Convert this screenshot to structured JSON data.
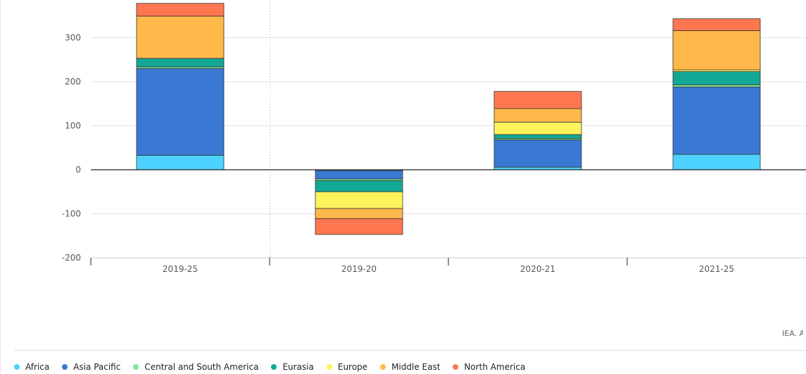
{
  "chart_data": {
    "type": "bar",
    "stacked": true,
    "categories": [
      "2019-25",
      "2019-20",
      "2020-21",
      "2021-25"
    ],
    "y_ticks": [
      300,
      200,
      100,
      0,
      -100,
      -200
    ],
    "y_tick_labels": [
      "300",
      "200",
      "100",
      "0",
      "-100",
      "-200"
    ],
    "ylim": [
      -200,
      380
    ],
    "grid": true,
    "legend_position": "bottom",
    "series": [
      {
        "name": "Africa",
        "color": "#4dd2ff",
        "values": [
          33,
          -2,
          6,
          35
        ]
      },
      {
        "name": "Asia Pacific",
        "color": "#3a78d4",
        "values": [
          197,
          -19,
          62,
          153
        ]
      },
      {
        "name": "Central and South America",
        "color": "#7ee89a",
        "values": [
          4,
          -4,
          3,
          5
        ]
      },
      {
        "name": "Eurasia",
        "color": "#13a896",
        "values": [
          19,
          -25,
          9,
          30
        ]
      },
      {
        "name": "Europe",
        "color": "#fff35c",
        "values": [
          0,
          -38,
          28,
          4
        ]
      },
      {
        "name": "Middle East",
        "color": "#ffb84a",
        "values": [
          96,
          -23,
          31,
          89
        ]
      },
      {
        "name": "North America",
        "color": "#ff7750",
        "values": [
          29,
          -36,
          39,
          27
        ]
      }
    ]
  },
  "source_note": "IEA. All rights reserved."
}
